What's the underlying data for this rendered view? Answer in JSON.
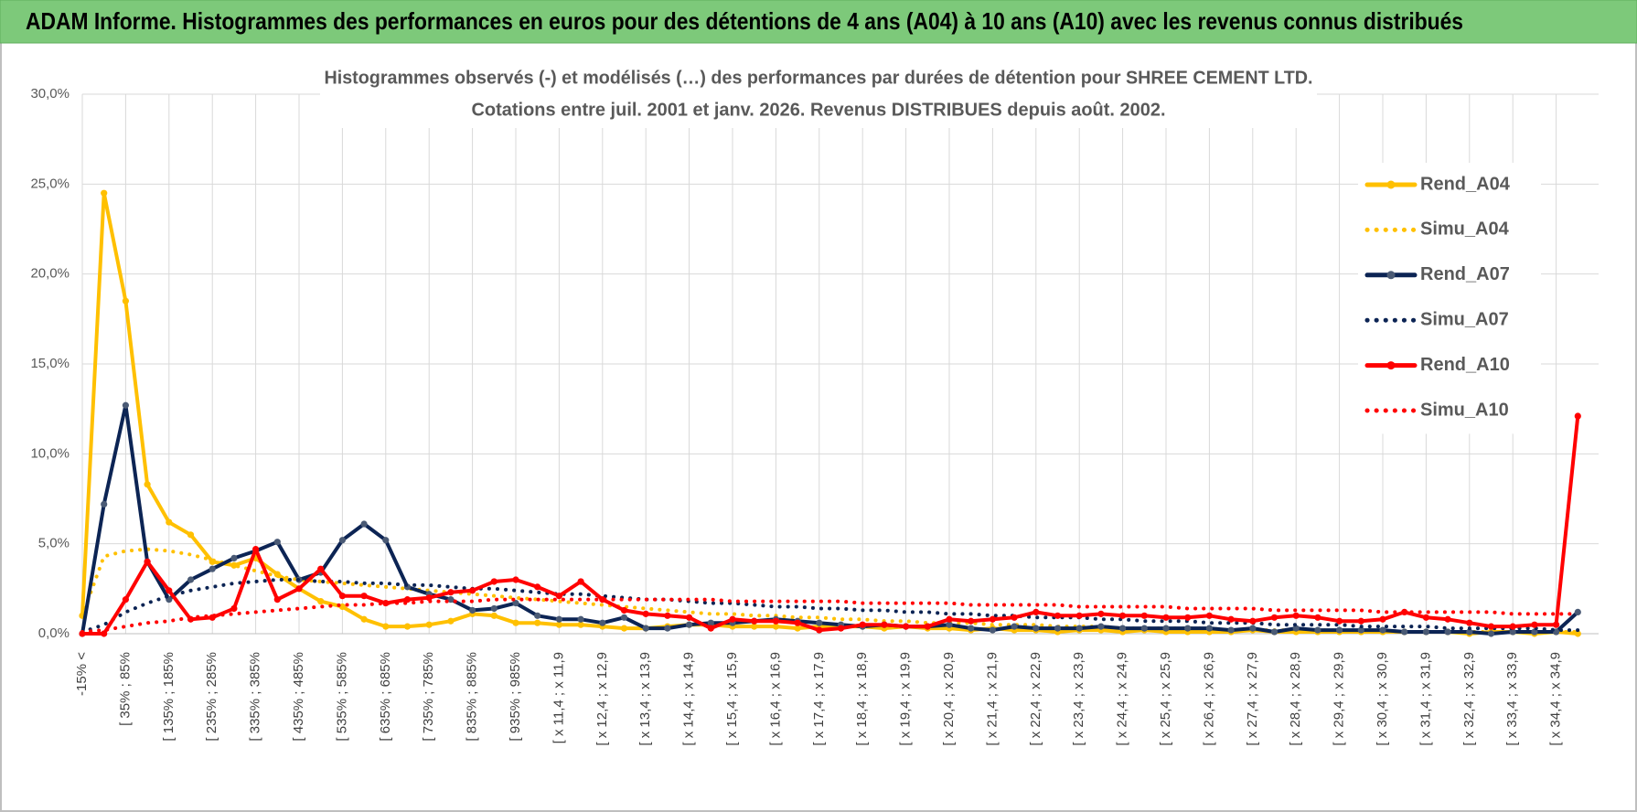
{
  "header": {
    "title": "ADAM Informe. Histogrammes des performances en euros pour des détentions de 4 ans (A04) à 10 ans (A10) avec les revenus connus distribués"
  },
  "chart_data": {
    "type": "line",
    "title": "Histogrammes observés (-) et modélisés (…) des performances par durées de détention pour SHREE CEMENT LTD.",
    "subtitle": "Cotations entre juil. 2001 et janv. 2026. Revenus DISTRIBUES depuis août. 2002.",
    "categories": [
      "-15% <",
      null,
      "[ 35% ; 85%",
      null,
      "[ 135% ; 185%",
      null,
      "[ 235% ; 285%",
      null,
      "[ 335% ; 385%",
      null,
      "[ 435% ; 485%",
      null,
      "[ 535% ; 585%",
      null,
      "[ 635% ; 685%",
      null,
      "[ 735% ; 785%",
      null,
      "[ 835% ; 885%",
      null,
      "[ 935% ; 985%",
      null,
      "[ x 11,4 ; x 11,9",
      null,
      "[ x 12,4 ; x 12,9",
      null,
      "[ x 13,4 ; x 13,9",
      null,
      "[ x 14,4 ; x 14,9",
      null,
      "[ x 15,4 ; x 15,9",
      null,
      "[ x 16,4 ; x 16,9",
      null,
      "[ x 17,4 ; x 17,9",
      null,
      "[ x 18,4 ; x 18,9",
      null,
      "[ x 19,4 ; x 19,9",
      null,
      "[ x 20,4 ; x 20,9",
      null,
      "[ x 21,4 ; x 21,9",
      null,
      "[ x 22,4 ; x 22,9",
      null,
      "[ x 23,4 ; x 23,9",
      null,
      "[ x 24,4 ; x 24,9",
      null,
      "[ x 25,4 ; x 25,9",
      null,
      "[ x 26,4 ; x 26,9",
      null,
      "[ x 27,4 ; x 27,9",
      null,
      "[ x 28,4 ; x 28,9",
      null,
      "[ x 29,4 ; x 29,9",
      null,
      "[ x 30,4 ; x 30,9",
      null,
      "[ x 31,4 ; x 31,9",
      null,
      "[ x 32,4 ; x 32,9",
      null,
      "[ x 33,4 ; x 33,9",
      null,
      "[ x 34,4 ; x 34,9",
      null
    ],
    "series": [
      {
        "name": "Rend_A04",
        "color": "#ffc000",
        "style": "solid",
        "values": [
          1.0,
          24.5,
          18.5,
          8.3,
          6.2,
          5.5,
          4.0,
          3.8,
          4.2,
          3.3,
          2.5,
          1.8,
          1.5,
          0.8,
          0.4,
          0.4,
          0.5,
          0.7,
          1.1,
          1.0,
          0.6,
          0.6,
          0.5,
          0.5,
          0.4,
          0.3,
          0.3,
          0.4,
          0.5,
          0.5,
          0.4,
          0.4,
          0.4,
          0.3,
          0.4,
          0.4,
          0.4,
          0.3,
          0.4,
          0.3,
          0.3,
          0.2,
          0.3,
          0.2,
          0.2,
          0.1,
          0.2,
          0.2,
          0.1,
          0.2,
          0.1,
          0.1,
          0.1,
          0.1,
          0.2,
          0.1,
          0.1,
          0.1,
          0.1,
          0.1,
          0.1,
          0.1,
          0.1,
          0.1,
          0.0,
          0.1,
          0.1,
          0.0,
          0.1,
          0.0
        ]
      },
      {
        "name": "Simu_A04",
        "color": "#ffc000",
        "style": "dotted",
        "values": [
          1.0,
          4.3,
          4.6,
          4.7,
          4.6,
          4.4,
          4.1,
          3.8,
          3.5,
          3.2,
          3.0,
          2.9,
          2.8,
          2.7,
          2.6,
          2.5,
          2.4,
          2.3,
          2.2,
          2.1,
          2.0,
          1.9,
          1.8,
          1.7,
          1.6,
          1.5,
          1.4,
          1.3,
          1.2,
          1.1,
          1.1,
          1.0,
          1.0,
          0.9,
          0.9,
          0.8,
          0.8,
          0.7,
          0.7,
          0.6,
          0.6,
          0.6,
          0.5,
          0.5,
          0.5,
          0.4,
          0.4,
          0.4,
          0.3,
          0.3,
          0.3,
          0.3,
          0.3,
          0.2,
          0.2,
          0.2,
          0.2,
          0.2,
          0.2,
          0.1,
          0.1,
          0.1,
          0.1,
          0.1,
          0.1,
          0.1,
          0.1,
          0.1,
          0.1,
          0.1
        ]
      },
      {
        "name": "Rend_A07",
        "color": "#0c2454",
        "style": "solid",
        "values": [
          0.0,
          7.2,
          12.7,
          4.0,
          1.9,
          3.0,
          3.6,
          4.2,
          4.6,
          5.1,
          3.0,
          3.4,
          5.2,
          6.1,
          5.2,
          2.6,
          2.2,
          1.9,
          1.3,
          1.4,
          1.7,
          1.0,
          0.8,
          0.8,
          0.6,
          0.9,
          0.3,
          0.3,
          0.5,
          0.6,
          0.6,
          0.7,
          0.8,
          0.7,
          0.6,
          0.5,
          0.4,
          0.5,
          0.4,
          0.4,
          0.5,
          0.3,
          0.2,
          0.4,
          0.3,
          0.3,
          0.3,
          0.4,
          0.3,
          0.3,
          0.3,
          0.3,
          0.3,
          0.2,
          0.3,
          0.1,
          0.3,
          0.2,
          0.2,
          0.2,
          0.2,
          0.1,
          0.1,
          0.1,
          0.1,
          0.0,
          0.1,
          0.1,
          0.1,
          1.2
        ]
      },
      {
        "name": "Simu_A07",
        "color": "#0c2454",
        "style": "dotted",
        "values": [
          0.1,
          0.5,
          1.2,
          1.7,
          2.1,
          2.4,
          2.6,
          2.8,
          2.9,
          3.0,
          3.0,
          2.9,
          2.9,
          2.8,
          2.8,
          2.7,
          2.7,
          2.6,
          2.5,
          2.5,
          2.4,
          2.3,
          2.2,
          2.2,
          2.1,
          2.0,
          1.9,
          1.9,
          1.8,
          1.7,
          1.7,
          1.6,
          1.5,
          1.5,
          1.4,
          1.4,
          1.3,
          1.3,
          1.2,
          1.2,
          1.1,
          1.1,
          1.0,
          1.0,
          0.9,
          0.9,
          0.9,
          0.8,
          0.8,
          0.7,
          0.7,
          0.7,
          0.6,
          0.6,
          0.6,
          0.5,
          0.5,
          0.5,
          0.5,
          0.4,
          0.4,
          0.4,
          0.4,
          0.3,
          0.3,
          0.3,
          0.3,
          0.3,
          0.2,
          0.2
        ]
      },
      {
        "name": "Rend_A10",
        "color": "#ff0000",
        "style": "solid",
        "values": [
          0.0,
          0.0,
          1.9,
          4.0,
          2.4,
          0.8,
          0.9,
          1.4,
          4.7,
          1.9,
          2.5,
          3.6,
          2.1,
          2.1,
          1.7,
          1.9,
          2.0,
          2.3,
          2.4,
          2.9,
          3.0,
          2.6,
          2.1,
          2.9,
          1.9,
          1.3,
          1.1,
          1.0,
          0.9,
          0.3,
          0.8,
          0.7,
          0.7,
          0.6,
          0.2,
          0.3,
          0.5,
          0.5,
          0.4,
          0.4,
          0.8,
          0.7,
          0.8,
          0.9,
          1.2,
          1.0,
          1.0,
          1.1,
          1.0,
          1.0,
          0.9,
          0.9,
          1.0,
          0.8,
          0.7,
          0.9,
          1.0,
          0.9,
          0.7,
          0.7,
          0.8,
          1.2,
          0.9,
          0.8,
          0.6,
          0.4,
          0.4,
          0.5,
          0.5,
          12.1
        ]
      },
      {
        "name": "Simu_A10",
        "color": "#ff0000",
        "style": "dotted",
        "values": [
          0.1,
          0.2,
          0.4,
          0.6,
          0.7,
          0.9,
          1.0,
          1.1,
          1.2,
          1.3,
          1.4,
          1.5,
          1.6,
          1.6,
          1.7,
          1.7,
          1.8,
          1.8,
          1.8,
          1.9,
          1.9,
          1.9,
          1.9,
          1.9,
          1.9,
          1.9,
          1.9,
          1.9,
          1.9,
          1.9,
          1.8,
          1.8,
          1.8,
          1.8,
          1.8,
          1.8,
          1.7,
          1.7,
          1.7,
          1.7,
          1.7,
          1.6,
          1.6,
          1.6,
          1.6,
          1.6,
          1.5,
          1.5,
          1.5,
          1.5,
          1.5,
          1.4,
          1.4,
          1.4,
          1.4,
          1.3,
          1.3,
          1.3,
          1.3,
          1.3,
          1.2,
          1.2,
          1.2,
          1.2,
          1.2,
          1.2,
          1.1,
          1.1,
          1.1,
          1.1
        ]
      }
    ],
    "ylim": [
      0,
      30
    ],
    "yticks": [
      {
        "value": 0,
        "label": "0,0%"
      },
      {
        "value": 5,
        "label": "5,0%"
      },
      {
        "value": 10,
        "label": "10,0%"
      },
      {
        "value": 15,
        "label": "15,0%"
      },
      {
        "value": 20,
        "label": "20,0%"
      },
      {
        "value": 25,
        "label": "25,0%"
      },
      {
        "value": 30,
        "label": "30,0%"
      }
    ],
    "grid": true,
    "legend": "right"
  }
}
